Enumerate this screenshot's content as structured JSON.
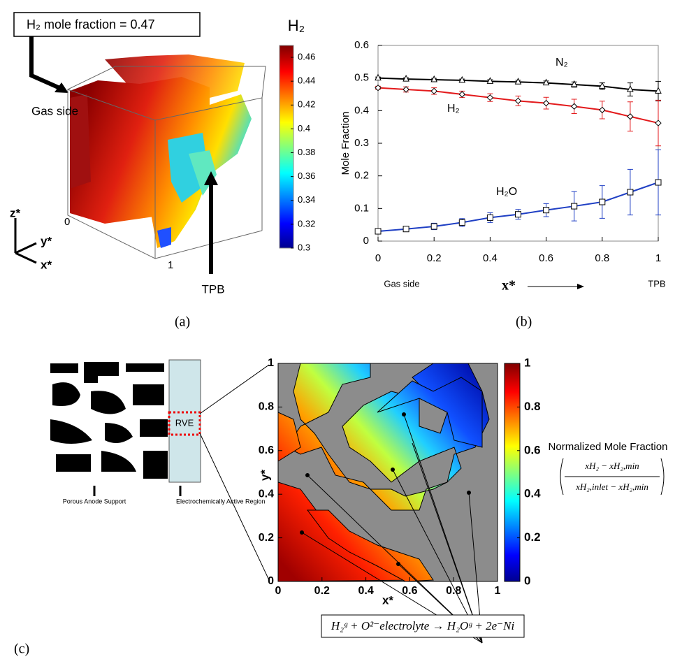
{
  "chart_data": [
    {
      "type": "line",
      "panel": "(b)",
      "x_label": "x*",
      "y_label": "Mole Fraction",
      "x": [
        0,
        0.1,
        0.2,
        0.3,
        0.4,
        0.5,
        0.6,
        0.7,
        0.8,
        0.9,
        1
      ],
      "series": [
        {
          "name": "N₂",
          "color": "#000000",
          "marker": "triangle",
          "values": [
            0.5,
            0.497,
            0.495,
            0.493,
            0.49,
            0.488,
            0.485,
            0.48,
            0.475,
            0.465,
            0.46
          ],
          "errors": [
            0.003,
            0.004,
            0.004,
            0.004,
            0.005,
            0.005,
            0.006,
            0.008,
            0.01,
            0.02,
            0.03
          ]
        },
        {
          "name": "H₂",
          "color": "#e31a1c",
          "marker": "diamond",
          "values": [
            0.47,
            0.465,
            0.46,
            0.45,
            0.44,
            0.43,
            0.423,
            0.413,
            0.402,
            0.382,
            0.362
          ],
          "errors": [
            0.005,
            0.008,
            0.01,
            0.01,
            0.012,
            0.015,
            0.018,
            0.022,
            0.027,
            0.045,
            0.07
          ]
        },
        {
          "name": "H₂O",
          "color": "#1f3fc4",
          "marker": "square",
          "values": [
            0.03,
            0.037,
            0.045,
            0.057,
            0.072,
            0.082,
            0.095,
            0.107,
            0.12,
            0.15,
            0.18
          ],
          "errors": [
            0.003,
            0.008,
            0.01,
            0.012,
            0.015,
            0.015,
            0.02,
            0.045,
            0.05,
            0.07,
            0.1
          ]
        }
      ],
      "xlim": [
        0,
        1
      ],
      "ylim": [
        0,
        0.6
      ],
      "xticks": [
        0,
        0.2,
        0.4,
        0.6,
        0.8,
        1
      ],
      "yticks": [
        0,
        0.1,
        0.2,
        0.3,
        0.4,
        0.5,
        0.6
      ],
      "annotations": [
        "Gas side",
        "TPB"
      ]
    }
  ],
  "panel_a": {
    "label": "(a)",
    "callout": "H₂ mole fraction = 0.47",
    "gas_side": "Gas side",
    "tpb": "TPB",
    "axes": [
      "z*",
      "y*",
      "x*"
    ],
    "corner_labels": [
      "0",
      "1"
    ],
    "colorbar": {
      "title": "H₂",
      "clim": [
        0.3,
        0.47
      ],
      "ticks": [
        0.3,
        0.32,
        0.34,
        0.36,
        0.38,
        0.4,
        0.42,
        0.44,
        0.46
      ]
    }
  },
  "panel_c": {
    "label": "(c)",
    "schematic": {
      "rve": "RVE",
      "left_label": "Porous Anode Support",
      "right_label": "Electrochemically Active Region"
    },
    "map": {
      "x_label": "x*",
      "y_label": "y*",
      "xlim": [
        0,
        1
      ],
      "ylim": [
        0,
        1
      ],
      "xticks": [
        0,
        0.2,
        0.4,
        0.6,
        0.8,
        1
      ],
      "yticks": [
        0,
        0.2,
        0.4,
        0.6,
        0.8,
        1
      ]
    },
    "colorbar": {
      "title": "Normalized Mole Fraction",
      "formula_numerator": "xH₂ − xH₂,min",
      "formula_denominator": "xH₂,inlet − xH₂,min",
      "clim": [
        0,
        1
      ],
      "ticks": [
        0,
        0.2,
        0.4,
        0.6,
        0.8,
        1
      ]
    },
    "reaction": "H₂ᵍ + O²⁻electrolyte → H₂Oᵍ + 2e⁻Ni"
  }
}
